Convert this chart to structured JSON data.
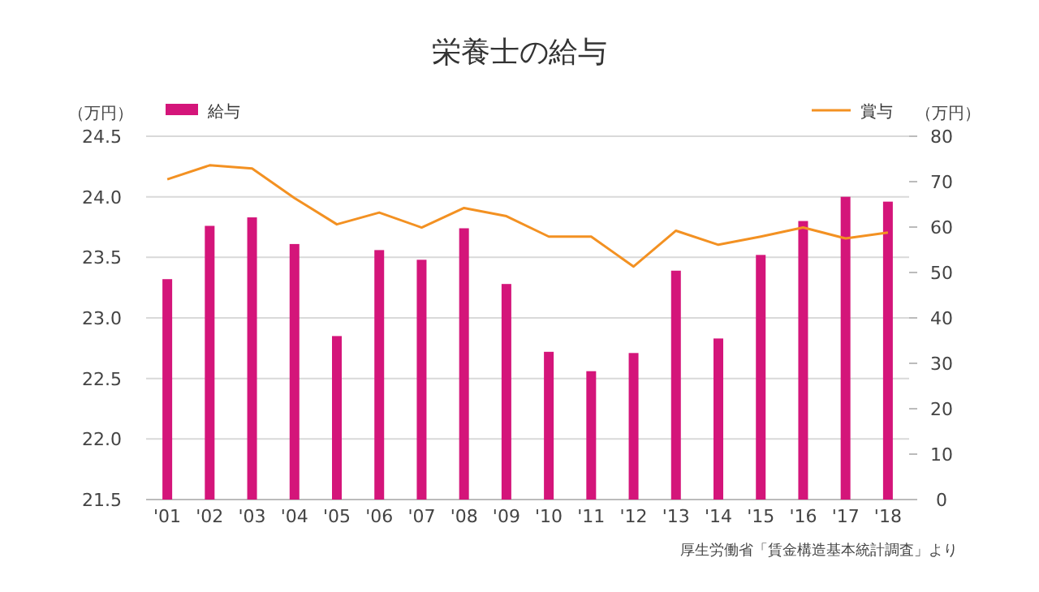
{
  "chart_data": {
    "type": "bar",
    "title": "栄養士の給与",
    "categories": [
      "'01",
      "'02",
      "'03",
      "'04",
      "'05",
      "'06",
      "'07",
      "'08",
      "'09",
      "'10",
      "'11",
      "'12",
      "'13",
      "'14",
      "'15",
      "'16",
      "'17",
      "'18"
    ],
    "series": [
      {
        "name": "給与",
        "color": "#d4157a",
        "values": [
          23.32,
          23.76,
          23.83,
          23.61,
          22.85,
          23.56,
          23.48,
          23.74,
          23.28,
          22.72,
          22.56,
          22.71,
          23.39,
          22.83,
          23.52,
          23.8,
          24.0,
          23.96
        ]
      },
      {
        "name": "賞与",
        "type": "line",
        "axis": "y2",
        "color": "#f39122",
        "values": [
          70.5,
          73.6,
          72.9,
          66.4,
          60.6,
          63.2,
          59.9,
          64.2,
          62.4,
          57.9,
          57.9,
          51.3,
          59.2,
          56.1,
          57.9,
          59.9,
          57.5,
          58.8
        ]
      }
    ],
    "ylim": [
      21.5,
      24.5
    ],
    "yticks": [
      {
        "value": 21.5,
        "label": "21.5"
      },
      {
        "value": 22,
        "label": "22.0"
      },
      {
        "value": 22.5,
        "label": "22.5"
      },
      {
        "value": 23,
        "label": "23.0"
      },
      {
        "value": 23.5,
        "label": "23.5"
      },
      {
        "value": 24,
        "label": "24.0"
      },
      {
        "value": 24.5,
        "label": "24.5"
      }
    ],
    "y2lim": [
      0,
      80
    ],
    "y2ticks": [
      0,
      10,
      20,
      30,
      40,
      50,
      60,
      70,
      80
    ],
    "ylabel": "（万円）",
    "y2label": "（万円）",
    "grid": "y",
    "legend": "top",
    "annotations": [
      "厚生労働省「賃金構造基本統計調査」より"
    ]
  }
}
